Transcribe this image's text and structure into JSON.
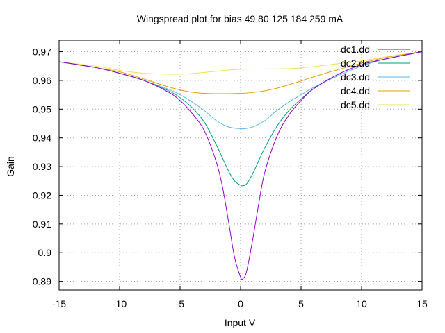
{
  "chart_data": {
    "type": "line",
    "title": "Wingspread plot for bias  49 80 125 184 259 mA",
    "xlabel": "Input V",
    "ylabel": "Gain",
    "xlim": [
      -15,
      15
    ],
    "ylim": [
      0.887,
      0.974
    ],
    "xticks": [
      -15,
      -10,
      -5,
      0,
      5,
      10,
      15
    ],
    "xtick_labels": [
      "-15",
      "-10",
      "-5",
      "0",
      "5",
      "10",
      "15"
    ],
    "yticks": [
      0.89,
      0.9,
      0.91,
      0.92,
      0.93,
      0.94,
      0.95,
      0.96,
      0.97
    ],
    "ytick_labels": [
      "0.89",
      "0.9",
      "0.91",
      "0.92",
      "0.93",
      "0.94",
      "0.95",
      "0.96",
      "0.97"
    ],
    "grid": true,
    "legend_position": "top-right",
    "series": [
      {
        "name": "dc1.dd",
        "color": "#9400d3",
        "x": [
          -15,
          -12,
          -10,
          -8,
          -6,
          -5,
          -4,
          -3,
          -2,
          -1.5,
          -1,
          -0.5,
          0,
          0.2,
          0.5,
          1,
          1.5,
          2,
          3,
          4,
          5,
          6,
          8,
          10,
          12,
          15
        ],
        "y": [
          0.9665,
          0.9645,
          0.9625,
          0.96,
          0.956,
          0.953,
          0.9485,
          0.9425,
          0.9315,
          0.923,
          0.911,
          0.8985,
          0.8915,
          0.891,
          0.8935,
          0.9045,
          0.917,
          0.928,
          0.9405,
          0.948,
          0.953,
          0.957,
          0.962,
          0.9655,
          0.9675,
          0.97
        ]
      },
      {
        "name": "dc2.dd",
        "color": "#009e73",
        "x": [
          -15,
          -12,
          -10,
          -8,
          -6,
          -5,
          -4,
          -3,
          -2,
          -1,
          -0.5,
          0,
          0.2,
          0.5,
          1,
          2,
          3,
          4,
          5,
          6,
          8,
          10,
          12,
          15
        ],
        "y": [
          0.9665,
          0.9645,
          0.9625,
          0.96,
          0.9565,
          0.954,
          0.9505,
          0.9455,
          0.9375,
          0.9285,
          0.925,
          0.9235,
          0.9233,
          0.924,
          0.9275,
          0.9365,
          0.944,
          0.9495,
          0.9535,
          0.957,
          0.962,
          0.9655,
          0.9675,
          0.97
        ]
      },
      {
        "name": "dc3.dd",
        "color": "#56b4e9",
        "x": [
          -15,
          -12,
          -10,
          -8,
          -6,
          -5,
          -4,
          -3,
          -2,
          -1,
          0,
          0.3,
          1,
          2,
          3,
          4,
          5,
          6,
          8,
          10,
          12,
          15
        ],
        "y": [
          0.9665,
          0.9645,
          0.9625,
          0.96,
          0.957,
          0.955,
          0.9525,
          0.9495,
          0.946,
          0.9438,
          0.9432,
          0.9432,
          0.9438,
          0.946,
          0.9495,
          0.9525,
          0.955,
          0.9575,
          0.9615,
          0.965,
          0.9675,
          0.97
        ]
      },
      {
        "name": "dc4.dd",
        "color": "#e69f00",
        "x": [
          -15,
          -12,
          -10,
          -8,
          -6,
          -5,
          -4,
          -3,
          -2,
          -1,
          0,
          1,
          2,
          3,
          4,
          5,
          6,
          8,
          10,
          12,
          15
        ],
        "y": [
          0.9665,
          0.9645,
          0.963,
          0.9605,
          0.9578,
          0.9567,
          0.9559,
          0.9555,
          0.9554,
          0.9554,
          0.9555,
          0.9558,
          0.9564,
          0.9573,
          0.9585,
          0.9598,
          0.9612,
          0.9637,
          0.966,
          0.968,
          0.97
        ]
      },
      {
        "name": "dc5.dd",
        "color": "#f0e442",
        "x": [
          -15,
          -12,
          -10,
          -8,
          -6,
          -5,
          -4,
          -3,
          -2,
          -1,
          0,
          2,
          4,
          6,
          8,
          10,
          12,
          15
        ],
        "y": [
          0.9665,
          0.965,
          0.9635,
          0.9625,
          0.9622,
          0.9622,
          0.9624,
          0.9628,
          0.9632,
          0.9636,
          0.9639,
          0.964,
          0.9641,
          0.9648,
          0.9658,
          0.9668,
          0.9682,
          0.97
        ]
      }
    ]
  }
}
